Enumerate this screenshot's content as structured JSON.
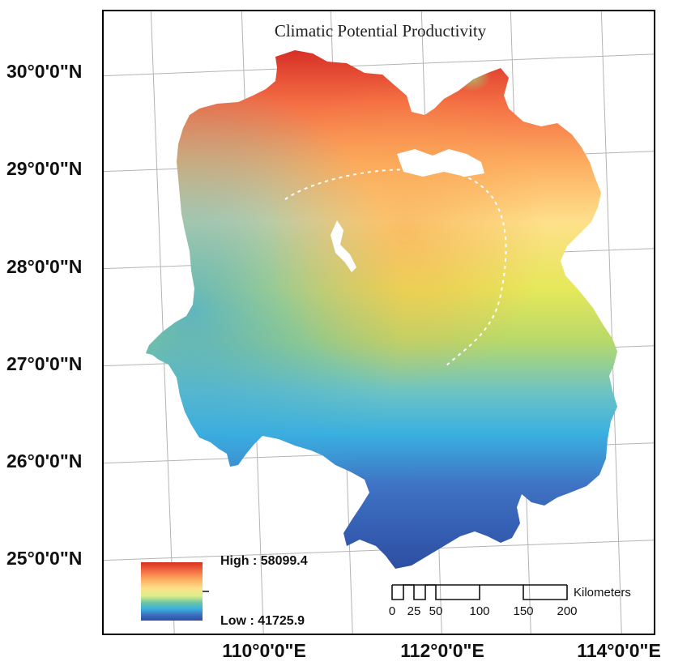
{
  "title": "Climatic Potential Productivity",
  "latitude_labels": [
    "30°0'0\"N",
    "29°0'0\"N",
    "28°0'0\"N",
    "27°0'0\"N",
    "26°0'0\"N",
    "25°0'0\"N"
  ],
  "longitude_labels": [
    "110°0'0\"E",
    "112°0'0\"E",
    "114°0'0\"E"
  ],
  "legend": {
    "high_label": "High : 58099.4",
    "low_label": "Low : 41725.9",
    "colors": [
      "#d7301f",
      "#f46d43",
      "#fdae61",
      "#fee08b",
      "#d9ef8b",
      "#66c2a5",
      "#3ab0e0",
      "#3f6fc0",
      "#2c4ea3"
    ]
  },
  "scale_bar": {
    "ticks": [
      "0",
      "25",
      "50",
      "100",
      "150",
      "200"
    ],
    "unit": "Kilometers"
  }
}
